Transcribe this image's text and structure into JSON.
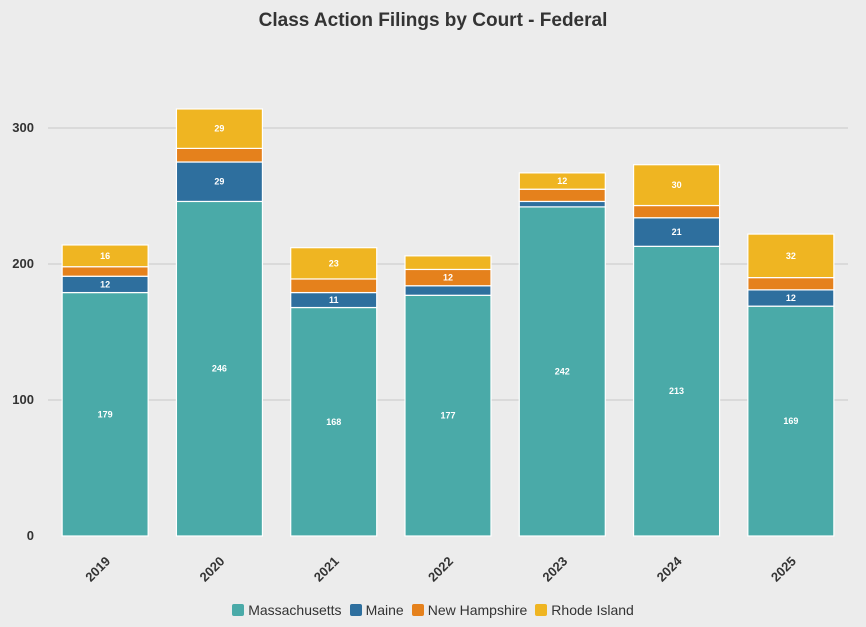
{
  "chart_data": {
    "type": "bar",
    "stacked": true,
    "title": "Class Action Filings by Court - Federal",
    "xlabel": "",
    "ylabel": "",
    "categories": [
      "2019",
      "2020",
      "2021",
      "2022",
      "2023",
      "2024",
      "2025"
    ],
    "ylim": [
      0,
      300
    ],
    "yticks": [
      "0",
      "100",
      "200",
      "300"
    ],
    "grid": true,
    "legend_position": "bottom",
    "series": [
      {
        "name": "Massachusetts",
        "color": "#4aaaa8",
        "values": [
          179,
          246,
          168,
          177,
          242,
          213,
          169
        ],
        "labels": [
          "179",
          "246",
          "168",
          "177",
          "242",
          "213",
          "169"
        ]
      },
      {
        "name": "Maine",
        "color": "#2e6f9e",
        "values": [
          12,
          29,
          11,
          7,
          4,
          21,
          12
        ],
        "labels": [
          "12",
          "29",
          "11",
          "",
          "",
          "21",
          "12"
        ]
      },
      {
        "name": "New Hampshire",
        "color": "#e5811c",
        "values": [
          7,
          10,
          10,
          12,
          9,
          9,
          9
        ],
        "labels": [
          "",
          "",
          "",
          "12",
          "",
          "",
          ""
        ]
      },
      {
        "name": "Rhode Island",
        "color": "#efb522",
        "values": [
          16,
          29,
          23,
          10,
          12,
          30,
          32
        ],
        "labels": [
          "16",
          "29",
          "23",
          "",
          "12",
          "30",
          "32"
        ]
      }
    ]
  }
}
